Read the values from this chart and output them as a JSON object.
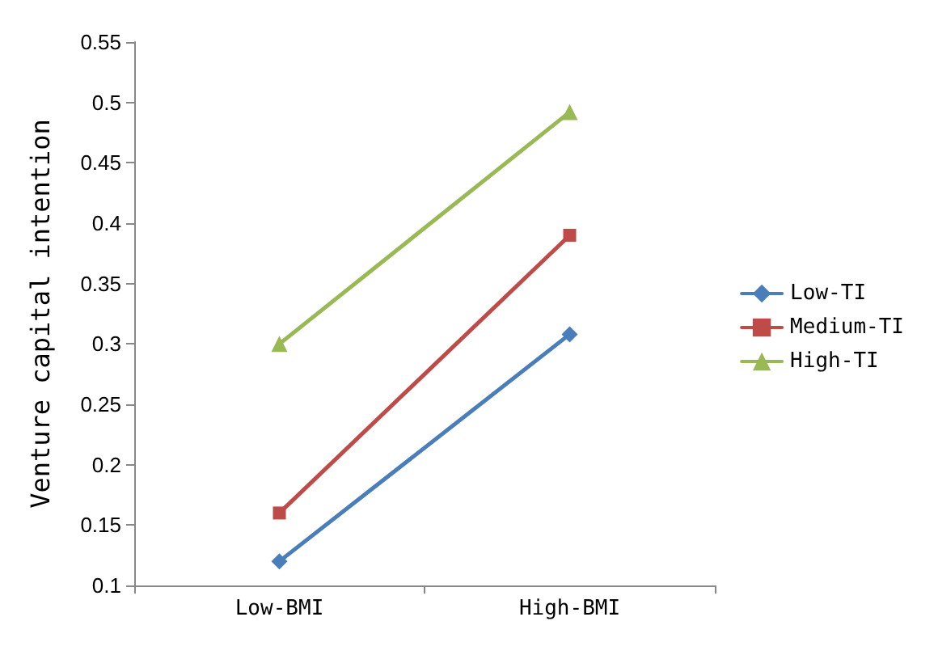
{
  "chart_data": {
    "type": "line",
    "ylabel": "Venture capital intention",
    "categories": [
      "Low-BMI",
      "High-BMI"
    ],
    "series": [
      {
        "name": "Low-TI",
        "color": "#4a7ebb",
        "marker": "diamond",
        "values": [
          0.12,
          0.308
        ]
      },
      {
        "name": "Medium-TI",
        "color": "#be4b48",
        "marker": "square",
        "values": [
          0.16,
          0.39
        ]
      },
      {
        "name": "High-TI",
        "color": "#98b954",
        "marker": "triangle",
        "values": [
          0.3,
          0.492
        ]
      }
    ],
    "ylim": [
      0.1,
      0.55
    ],
    "yticks": [
      0.1,
      0.15,
      0.2,
      0.25,
      0.3,
      0.35,
      0.4,
      0.45,
      0.5,
      0.55
    ],
    "grid": false,
    "legend": "right",
    "line_style": "solid"
  }
}
